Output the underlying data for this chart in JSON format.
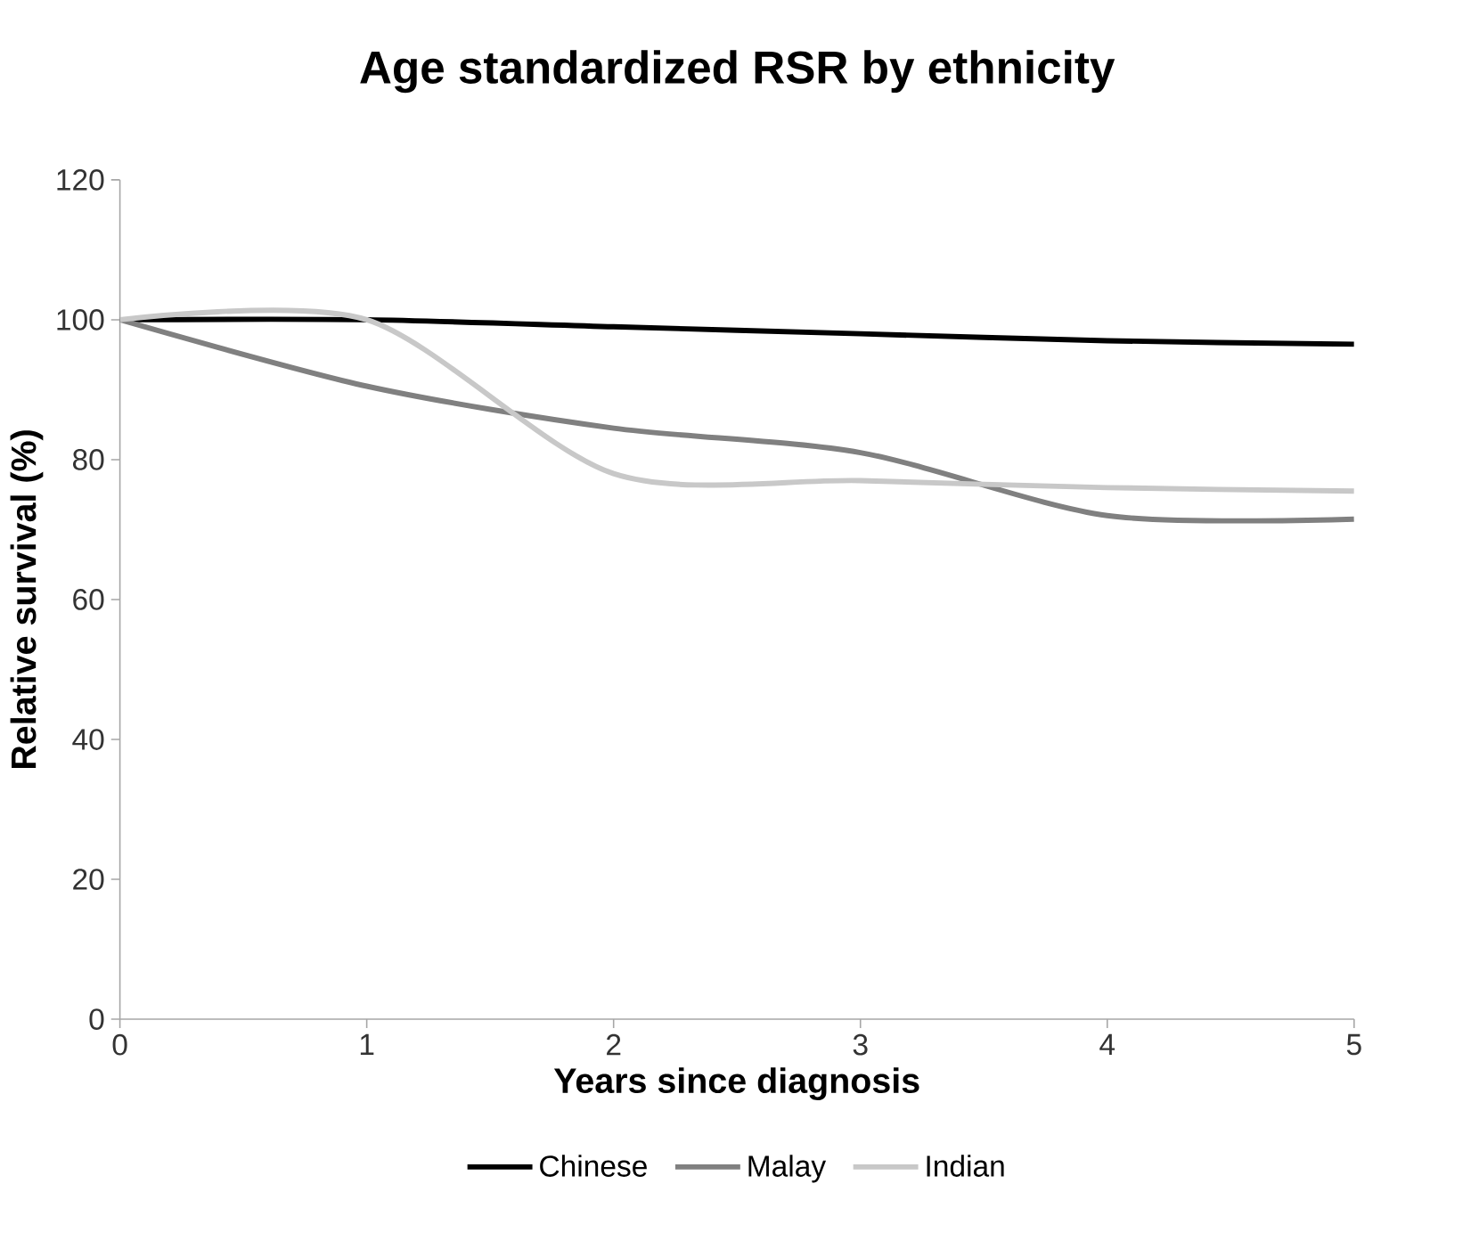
{
  "chart_data": {
    "type": "line",
    "title": "Age standardized RSR by ethnicity",
    "xlabel": "Years since diagnosis",
    "ylabel": "Relative survival (%)",
    "x": [
      0,
      1,
      2,
      3,
      4,
      5
    ],
    "series": [
      {
        "name": "Chinese",
        "color": "#000000",
        "values": [
          100,
          100,
          99,
          98,
          97,
          96.5
        ]
      },
      {
        "name": "Malay",
        "color": "#808080",
        "values": [
          100,
          90.5,
          84.5,
          81,
          72,
          71.5
        ]
      },
      {
        "name": "Indian",
        "color": "#c8c8c8",
        "values": [
          100,
          100,
          78,
          77,
          76,
          75.5
        ]
      }
    ],
    "xlim": [
      0,
      5
    ],
    "xticks": [
      0,
      1,
      2,
      3,
      4,
      5
    ],
    "ylim": [
      0,
      120
    ],
    "yticks": [
      0,
      20,
      40,
      60,
      80,
      100,
      120
    ],
    "grid": false,
    "legend": "bottom",
    "marker": "none",
    "line_style": "solid"
  }
}
